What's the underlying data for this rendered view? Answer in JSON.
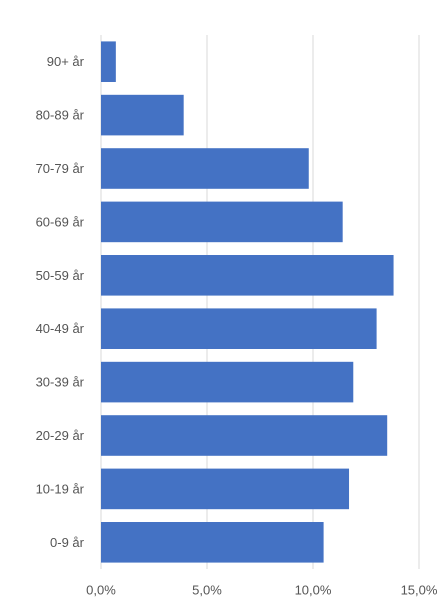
{
  "chart_data": {
    "type": "bar",
    "orientation": "horizontal",
    "categories": [
      "90+ år",
      "80-89 år",
      "70-79 år",
      "60-69 år",
      "50-59 år",
      "40-49 år",
      "30-39 år",
      "20-29 år",
      "10-19 år",
      "0-9 år"
    ],
    "values": [
      0.7,
      3.9,
      9.8,
      11.4,
      13.8,
      13.0,
      11.9,
      13.5,
      11.7,
      10.5
    ],
    "xlim": [
      0,
      15
    ],
    "x_ticks": [
      0,
      5,
      10,
      15
    ],
    "x_tick_labels": [
      "0,0%",
      "5,0%",
      "10,0%",
      "15,0%"
    ],
    "title": "",
    "xlabel": "",
    "ylabel": "",
    "grid": "vertical",
    "legend": "none",
    "colors": {
      "bar": "#4472C4",
      "grid": "#d9d9d9",
      "text": "#555555"
    }
  }
}
